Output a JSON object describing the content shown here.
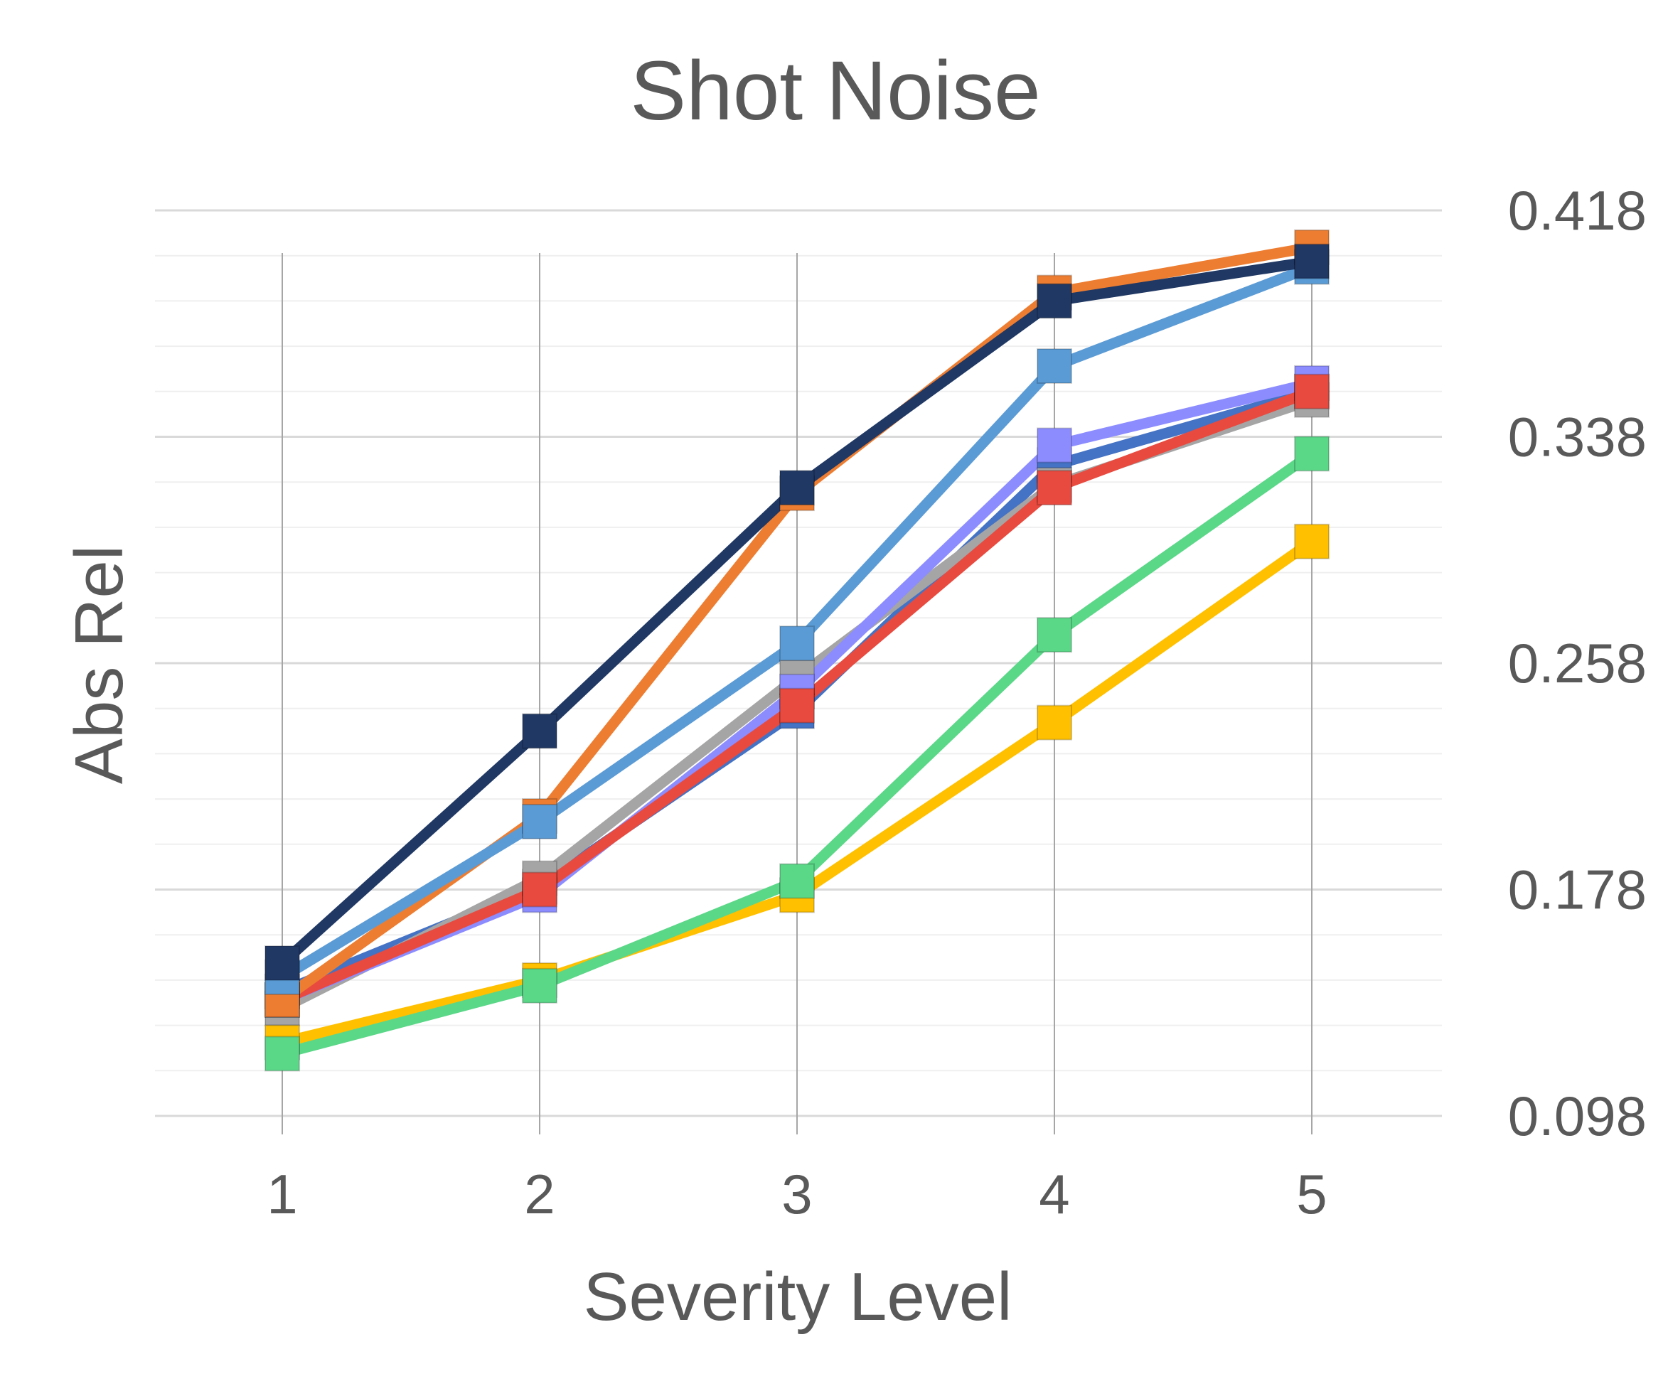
{
  "chart_data": {
    "type": "line",
    "title": "Shot Noise",
    "xlabel": "Severity Level",
    "ylabel": "Abs Rel",
    "x": [
      1,
      2,
      3,
      4,
      5
    ],
    "ylim": [
      0.098,
      0.418
    ],
    "yticks": [
      0.098,
      0.178,
      0.258,
      0.338,
      0.418
    ],
    "y_axis_side": "right",
    "grid": true,
    "legend": "none",
    "marker": "square",
    "series": [
      {
        "color": "#4472C4",
        "values": [
          0.142,
          0.179,
          0.241,
          0.328,
          0.354
        ]
      },
      {
        "color": "#A5A5A5",
        "values": [
          0.136,
          0.182,
          0.253,
          0.321,
          0.351
        ]
      },
      {
        "color": "#8C8CFF",
        "values": [
          0.139,
          0.176,
          0.248,
          0.335,
          0.357
        ]
      },
      {
        "color": "#E84A3F",
        "values": [
          0.139,
          0.178,
          0.243,
          0.32,
          0.354
        ]
      },
      {
        "color": "#FFC000",
        "values": [
          0.124,
          0.146,
          0.176,
          0.237,
          0.301
        ]
      },
      {
        "color": "#5BD788",
        "values": [
          0.12,
          0.144,
          0.181,
          0.268,
          0.332
        ]
      },
      {
        "color": "#ED7D31",
        "values": [
          0.139,
          0.204,
          0.318,
          0.389,
          0.405
        ]
      },
      {
        "color": "#5B9BD5",
        "values": [
          0.147,
          0.202,
          0.265,
          0.363,
          0.398
        ]
      },
      {
        "color": "#203864",
        "values": [
          0.152,
          0.234,
          0.32,
          0.386,
          0.4
        ]
      }
    ]
  }
}
